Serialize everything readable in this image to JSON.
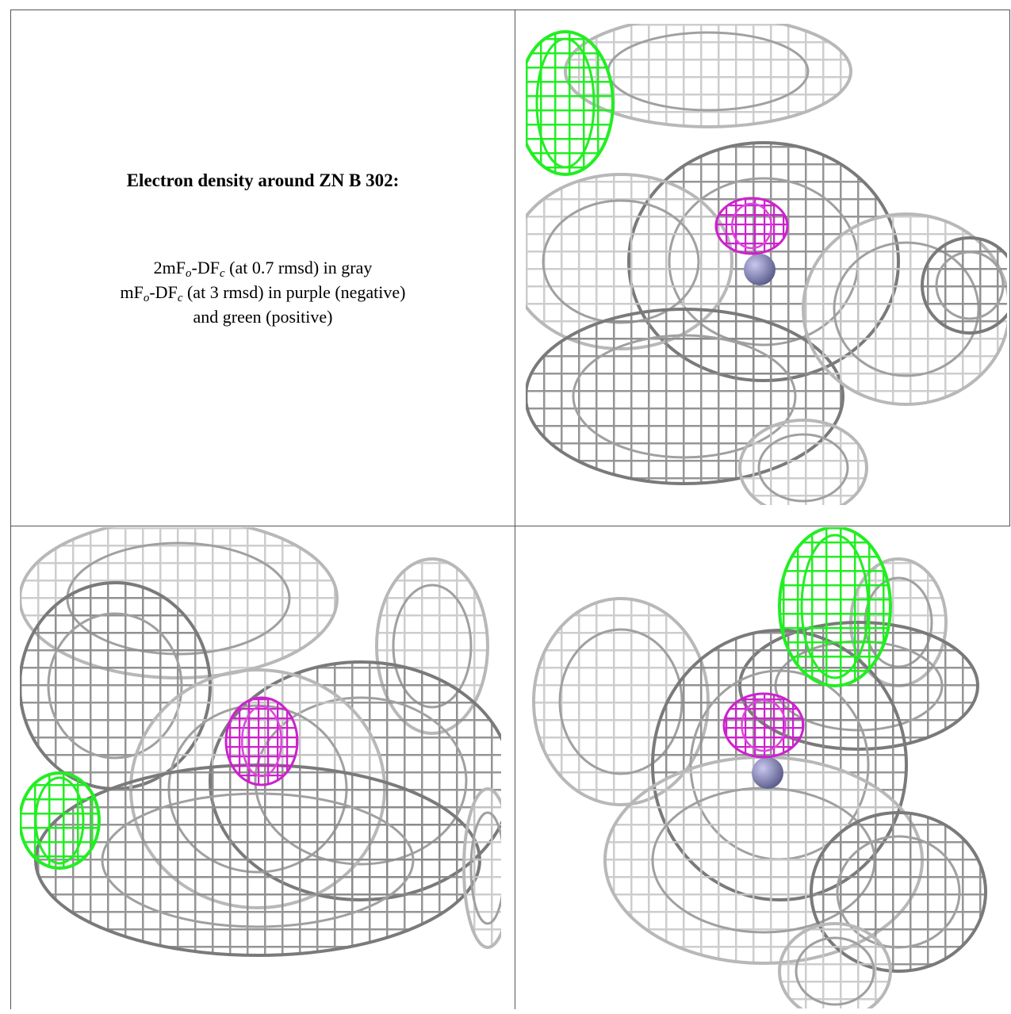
{
  "figure": {
    "title": "Electron density around ZN B 302:",
    "caption": [
      [
        "2mF",
        "o",
        "-DF",
        "c",
        " (at 0.7 rmsd) in gray"
      ],
      [
        "mF",
        "o",
        "-DF",
        "c",
        " (at 3 rmsd) in purple (negative)"
      ],
      [
        "and green (positive)"
      ]
    ]
  }
}
